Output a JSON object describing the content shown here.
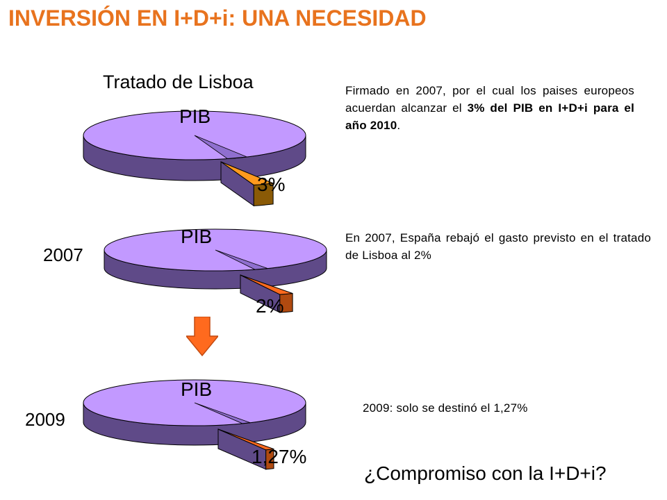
{
  "slide": {
    "title": "INVERSIÓN EN I+D+i: UNA NECESIDAD",
    "subtitle": "Tratado de Lisboa",
    "question": "¿Compromiso con la I+D+i?"
  },
  "colors": {
    "title": "#e8731e",
    "pie_top": "#c299ff",
    "pie_side": "#5f4a88",
    "slice_1": "#ff9a1e",
    "slice_1_side": "#8a5a06",
    "slice_2": "#ff6a1e",
    "slice_2_side": "#b04a10",
    "arrow": "#ff6a1e"
  },
  "chart_data": [
    {
      "type": "pie",
      "name": "pie-lisboa",
      "year": "",
      "labels": [
        "PIB",
        "3%"
      ],
      "values": [
        97,
        3
      ],
      "highlight_label": "3%",
      "description_parts": [
        {
          "text": "Firmado en 2007, por el cual los paises europeos acuerdan alcanzar el ",
          "bold": false
        },
        {
          "text": "3% del PIB en I+D+i para el año 2010",
          "bold": true
        },
        {
          "text": ".",
          "bold": false
        }
      ]
    },
    {
      "type": "pie",
      "name": "pie-2007",
      "year": "2007",
      "labels": [
        "PIB",
        "2%"
      ],
      "values": [
        98,
        2
      ],
      "highlight_label": "2%",
      "description_parts": [
        {
          "text": "En 2007, España rebajó el gasto previsto en el tratado de Lisboa al 2%",
          "bold": false
        }
      ]
    },
    {
      "type": "pie",
      "name": "pie-2009",
      "year": "2009",
      "labels": [
        "PIB",
        "1,27%"
      ],
      "values": [
        98.73,
        1.27
      ],
      "highlight_label": "1,27%",
      "description_parts": [
        {
          "text": "2009: solo se destinó el 1,27%",
          "bold": false
        }
      ]
    }
  ]
}
